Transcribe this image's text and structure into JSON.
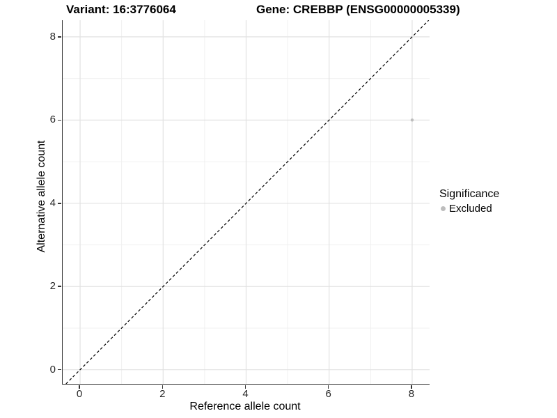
{
  "titles": {
    "left": "Variant: 16:3776064",
    "right": "Gene: CREBBP (ENSG00000005339)"
  },
  "chart_data": {
    "type": "scatter",
    "xlabel": "Reference allele count",
    "ylabel": "Alternative allele count",
    "xlim": [
      -0.42,
      8.42
    ],
    "ylim": [
      -0.34,
      8.4
    ],
    "xticks": [
      0,
      2,
      4,
      6,
      8
    ],
    "yticks": [
      0,
      2,
      4,
      6,
      8
    ],
    "minor_xticks": [
      1,
      3,
      5,
      7
    ],
    "minor_yticks": [
      1,
      3,
      5,
      7
    ],
    "grid": true,
    "aspect": "equal",
    "reference_line": {
      "type": "identity y=x",
      "style": "dashed",
      "color": "#000000"
    },
    "series": [
      {
        "name": "Excluded",
        "points": [
          {
            "x": 8,
            "y": 6
          }
        ],
        "color": "#bdbdbd"
      }
    ],
    "legend": {
      "title": "Significance",
      "position": "right",
      "entries": [
        {
          "label": "Excluded",
          "color": "#bdbdbd"
        }
      ]
    }
  },
  "colors": {
    "background": "#ffffff",
    "grid_major": "#e2e2e2",
    "grid_minor": "#f0f0f0",
    "axis_line": "#333333",
    "tick_text": "#262626",
    "point": "#bdbdbd",
    "dashed_line": "#000000"
  }
}
